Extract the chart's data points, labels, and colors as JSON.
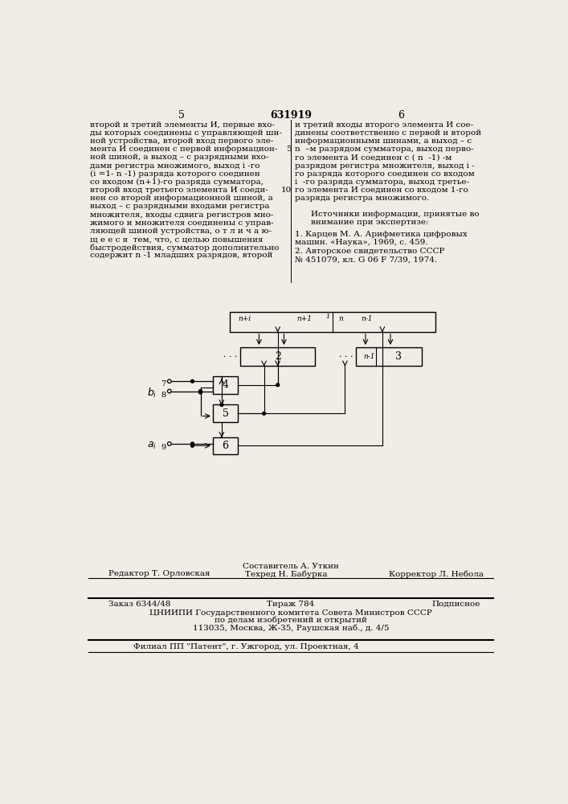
{
  "bg_color": "#f0ede6",
  "page_number_left": "5",
  "patent_number": "631919",
  "page_number_right": "6",
  "left_col_text": [
    "второй и третий элементы И, первые вхо-",
    "ды которых соединены с управляющей ши-",
    "ной устройства, второй вход первого эле-",
    "мента И соединен с первой информацион-",
    "ной шиной, а выход – с разрядными вхо-",
    "дами регистра множимого, выход i -го",
    "(i =1- n -1) разряда которого соединен",
    "со входом (n+1)-го разряда сумматора,",
    "второй вход третьего элемента И соеди-",
    "нен со второй информационной шиной, а",
    "выход – с разрядными входами регистра",
    "множителя, входы сдвига регистров мно-",
    "жимого и множителя соединены с управ-",
    "ляющей шиной устройства, о т л и ч а ю-",
    "щ е е с я  тем, что, с целью повышения",
    "быстродействия, сумматор дополнительно",
    "содержит n -1 младших разрядов, второй"
  ],
  "right_col_text": [
    "и третий входы второго элемента И сое-",
    "динены соответственно с первой и второй",
    "информационными шинами, а выход – с",
    "n  –м разрядом сумматора, выход перво-",
    "го элемента И соединен с ( n  -1) -м",
    "разрядом регистра множителя, выход i -",
    "го разряда которого соединен со входом",
    "i  -го разряда сумматора, выход третье-",
    "го элемента И соединен со входом 1-го",
    "разряда регистра множимого."
  ],
  "sources_header": "Источники информации, принятые во",
  "sources_header2": "внимание при экспертизе:",
  "source1": "1. Карцев М. А. Арифметика цифровых",
  "source1b": "машин. «Наука», 1969, с. 459.",
  "source2": "2. Авторское свидетельство СССР",
  "source2b": "№ 451079, кл. G 06 F 7/39, 1974.",
  "bottom_comp": "Составитель А. Уткин",
  "bottom_tech": "Техред Н. Бабурка",
  "bottom_editor": "Редактор Т. Орловская",
  "bottom_corrector": "Корректор Л. Небола",
  "bottom_order": "Заказ 6344/48",
  "bottom_tirazh": "Тираж 784",
  "bottom_podp": "Подписное",
  "bottom_cniip1": "ЦНИИПИ Государственного комитета Совета Министров СССР",
  "bottom_cniip2": "по делам изобретений и открытий",
  "bottom_cniip3": "113035, Москва, Ж-35, Раушская наб., д. 4/5",
  "bottom_filial": "Филиал ПП \"Патент\", г. Ужгород, ул. Проектная, 4"
}
